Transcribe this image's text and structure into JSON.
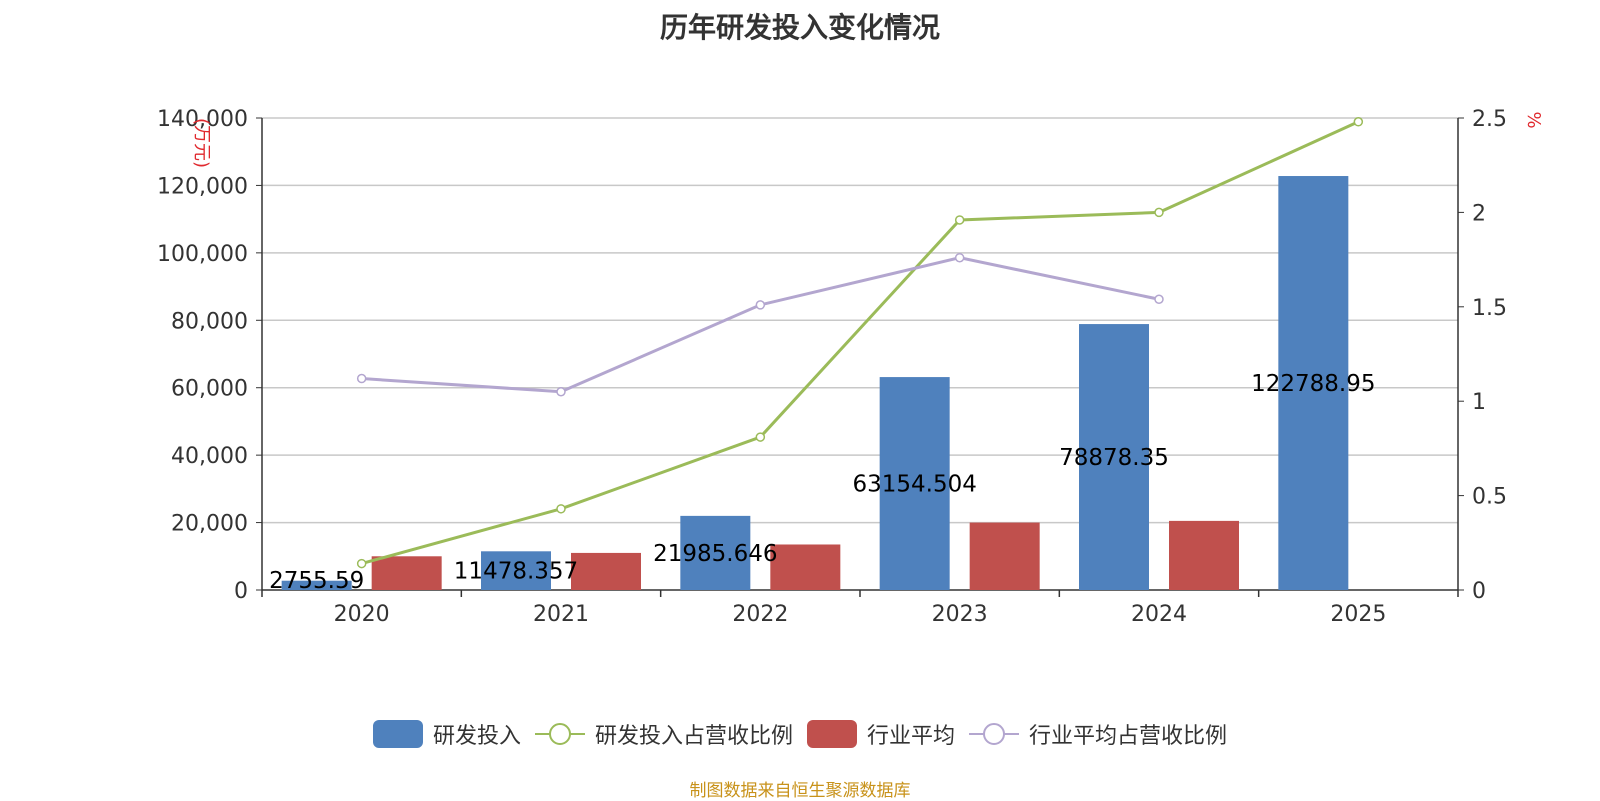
{
  "chart_data": {
    "type": "bar",
    "title": "历年研发投入变化情况",
    "categories": [
      "2020",
      "2021",
      "2022",
      "2023",
      "2024",
      "2025"
    ],
    "y_left": {
      "unit_label": "(万元)",
      "ylim": [
        0,
        140000
      ],
      "ticks": [
        0,
        20000,
        40000,
        60000,
        80000,
        100000,
        120000,
        140000
      ],
      "tick_labels": [
        "0",
        "20,000",
        "40,000",
        "60,000",
        "80,000",
        "100,000",
        "120,000",
        "140,000"
      ]
    },
    "y_right": {
      "unit_label": "%",
      "ylim": [
        0,
        2.5
      ],
      "ticks": [
        0,
        0.5,
        1,
        1.5,
        2,
        2.5
      ],
      "tick_labels": [
        "0",
        "0.5",
        "1",
        "1.5",
        "2",
        "2.5"
      ]
    },
    "series": [
      {
        "name": "研发投入",
        "type": "bar",
        "axis": "left",
        "color": "#4f81bd",
        "values": [
          2755.59,
          11478.357,
          21985.646,
          63154.504,
          78878.35,
          122788.95
        ],
        "labels": [
          "2755.59",
          "11478.357",
          "21985.646",
          "63154.504",
          "78878.35",
          "122788.95"
        ]
      },
      {
        "name": "研发投入占营收比例",
        "type": "line",
        "axis": "right",
        "color": "#9bbb59",
        "values": [
          0.14,
          0.43,
          0.81,
          1.96,
          2.0,
          2.48
        ]
      },
      {
        "name": "行业平均",
        "type": "bar",
        "axis": "left",
        "color": "#c0504d",
        "values": [
          10000,
          11000,
          13500,
          20000,
          20500,
          null
        ]
      },
      {
        "name": "行业平均占营收比例",
        "type": "line",
        "axis": "right",
        "color": "#b3a6cf",
        "values": [
          1.12,
          1.05,
          1.51,
          1.76,
          1.54,
          null
        ]
      }
    ],
    "legend_position": "bottom",
    "grid": true
  },
  "source_note": "制图数据来自恒生聚源数据库"
}
